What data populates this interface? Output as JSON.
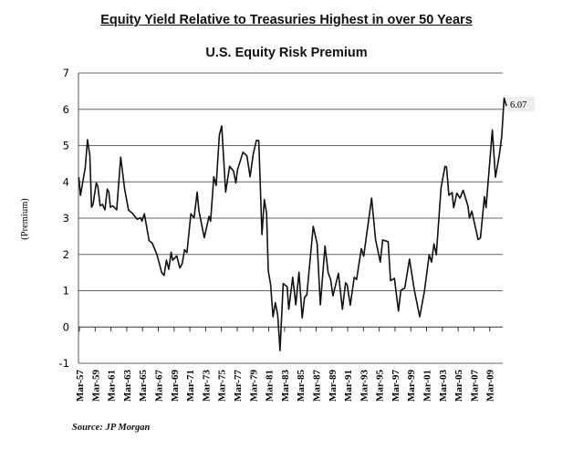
{
  "chart_data": {
    "type": "line",
    "title": "Equity Yield Relative to Treasuries Highest in over 50 Years",
    "subtitle": "U.S. Equity Risk Premium",
    "xlabel": "",
    "ylabel": "(Premium)",
    "ylim": [
      -1,
      7
    ],
    "xlim": [
      1957.05,
      2011.4
    ],
    "yticks": [
      "-1",
      "0",
      "1",
      "2",
      "3",
      "4",
      "5",
      "6",
      "7"
    ],
    "xticks": [
      "Mar-57",
      "Mar-59",
      "Mar-61",
      "Mar-63",
      "Mar-65",
      "Mar-67",
      "Mar-69",
      "Mar-71",
      "Mar-73",
      "Mar-75",
      "Mar-77",
      "Mar-79",
      "Mar-81",
      "Mar-83",
      "Mar-85",
      "Mar-87",
      "Mar-89",
      "Mar-91",
      "Mar-93",
      "Mar-95",
      "Mar-97",
      "Mar-99",
      "Mar-01",
      "Mar-03",
      "Mar-05",
      "Mar-07",
      "Mar-09"
    ],
    "grid": true,
    "annotation": "6.07",
    "source": "Source: JP Morgan",
    "series": [
      {
        "name": "U.S. Equity Risk Premium",
        "color": "#111111",
        "x": [
          1957.1,
          1957.3,
          1957.9,
          1958.2,
          1958.5,
          1958.7,
          1958.9,
          1959.3,
          1959.5,
          1959.8,
          1960.1,
          1960.4,
          1960.7,
          1960.9,
          1961.1,
          1961.4,
          1961.9,
          1962.4,
          1962.9,
          1963.4,
          1963.9,
          1964.5,
          1964.9,
          1965.1,
          1965.4,
          1966.0,
          1966.4,
          1967.0,
          1967.6,
          1967.9,
          1968.2,
          1968.5,
          1968.8,
          1969.0,
          1969.5,
          1969.9,
          1970.2,
          1970.5,
          1970.8,
          1971.3,
          1971.7,
          1972.1,
          1972.3,
          1973.0,
          1973.6,
          1973.8,
          1974.2,
          1974.5,
          1974.9,
          1975.2,
          1975.7,
          1976.2,
          1976.7,
          1977.0,
          1977.2,
          1977.9,
          1978.4,
          1978.8,
          1979.2,
          1979.6,
          1979.9,
          1980.3,
          1980.6,
          1980.9,
          1981.1,
          1981.4,
          1981.7,
          1982.0,
          1982.3,
          1982.6,
          1983.0,
          1983.5,
          1983.7,
          1984.2,
          1984.6,
          1985.0,
          1985.4,
          1985.7,
          1986.0,
          1986.8,
          1987.3,
          1987.7,
          1988.3,
          1988.7,
          1989.0,
          1989.3,
          1990.0,
          1990.5,
          1990.9,
          1991.1,
          1991.5,
          1992.0,
          1992.3,
          1992.9,
          1993.2,
          1994.2,
          1994.7,
          1995.3,
          1995.6,
          1996.3,
          1996.6,
          1997.1,
          1997.6,
          1997.9,
          1998.4,
          1999.0,
          1999.6,
          2000.3,
          2000.9,
          2001.5,
          2001.8,
          2002.1,
          2002.4,
          2003.0,
          2003.5,
          2003.7,
          2004.0,
          2004.4,
          2004.6,
          2005.0,
          2005.4,
          2005.8,
          2006.4,
          2006.6,
          2006.9,
          2007.7,
          2008.0,
          2008.5,
          2008.7,
          2009.5,
          2009.9,
          2010.4,
          2010.7,
          2011.0,
          2011.3
        ],
        "values": [
          4.13,
          3.63,
          4.39,
          5.16,
          4.72,
          3.3,
          3.38,
          3.97,
          3.88,
          3.34,
          3.38,
          3.23,
          3.8,
          3.72,
          3.3,
          3.34,
          3.23,
          4.68,
          3.8,
          3.22,
          3.13,
          2.97,
          3.01,
          2.92,
          3.12,
          2.38,
          2.31,
          2.0,
          1.5,
          1.42,
          1.84,
          1.59,
          2.06,
          1.84,
          1.96,
          1.63,
          1.75,
          2.13,
          2.05,
          3.12,
          3.01,
          3.72,
          3.22,
          2.46,
          3.05,
          2.92,
          4.14,
          3.9,
          5.29,
          5.54,
          3.72,
          4.43,
          4.3,
          3.97,
          4.33,
          4.82,
          4.72,
          4.14,
          4.76,
          5.14,
          5.14,
          2.55,
          3.51,
          3.13,
          1.55,
          1.17,
          0.28,
          0.67,
          0.32,
          -0.65,
          1.2,
          1.11,
          0.49,
          1.37,
          0.61,
          1.51,
          0.25,
          0.82,
          0.89,
          2.77,
          2.29,
          0.61,
          2.23,
          1.49,
          1.32,
          0.86,
          1.48,
          0.49,
          1.22,
          1.16,
          0.6,
          1.37,
          1.31,
          2.16,
          1.95,
          3.55,
          2.41,
          1.79,
          2.4,
          2.35,
          1.28,
          1.34,
          0.44,
          1.01,
          1.07,
          1.87,
          1.03,
          0.28,
          0.99,
          1.99,
          1.79,
          2.29,
          1.99,
          3.84,
          4.43,
          4.41,
          3.63,
          3.71,
          3.29,
          3.69,
          3.55,
          3.77,
          3.34,
          3.0,
          3.19,
          2.41,
          2.46,
          3.59,
          3.29,
          5.43,
          4.13,
          4.76,
          5.26,
          6.31,
          6.09
        ]
      }
    ]
  }
}
